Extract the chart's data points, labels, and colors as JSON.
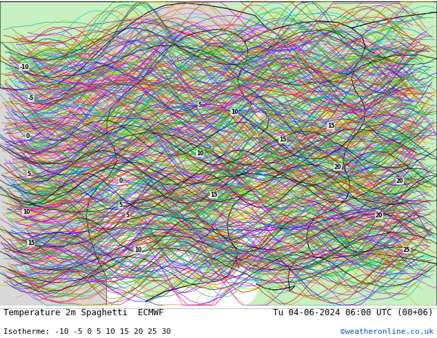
{
  "bottom_left_line1": "Temperature 2m Spaghetti  ECMWF",
  "bottom_left_line2": "Isotherme: -10 -5 0 5 10 15 20 25 30",
  "bottom_right_line1": "Tu 04-06-2024 06:00 UTC (00+06)",
  "bottom_right_line2": "©weatheronline.co.uk",
  "bottom_right_line2_color": "#0055cc",
  "background_color": "#ffffff",
  "sea_color": "#d8d8d8",
  "land_color": "#c8f0c0",
  "fig_width": 6.34,
  "fig_height": 4.9,
  "dpi": 100,
  "text_color": "#000000",
  "font_size_main": 9,
  "font_size_sub": 8
}
